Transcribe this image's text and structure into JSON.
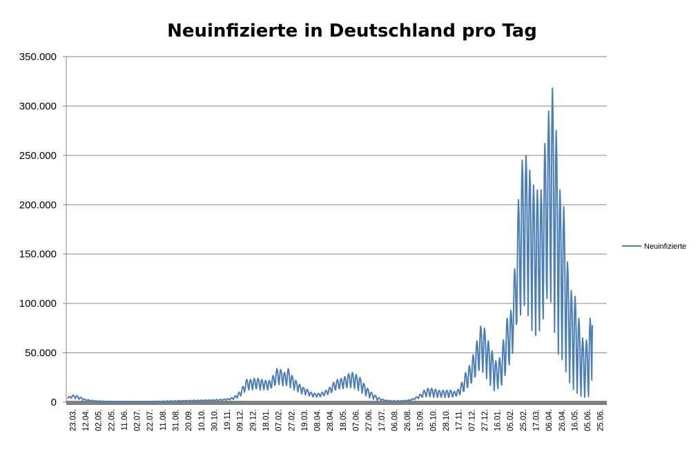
{
  "chart_data": {
    "type": "line",
    "title": "Neuinfizierte in Deutschland pro Tag",
    "xlabel": "",
    "ylabel": "",
    "ylim": [
      0,
      350000
    ],
    "y_ticks": [
      0,
      50000,
      100000,
      150000,
      200000,
      250000,
      300000,
      350000
    ],
    "y_tick_labels": [
      "0",
      "50.000",
      "100.000",
      "150.000",
      "200.000",
      "250.000",
      "300.000",
      "350.000"
    ],
    "x_tick_labels": [
      "23.03.",
      "12.04.",
      "02.05.",
      "22.05.",
      "11.06.",
      "02.07.",
      "22.07.",
      "11.08.",
      "31.08.",
      "20.09.",
      "10.10.",
      "30.10.",
      "19.11.",
      "09.12.",
      "29.12.",
      "18.01.",
      "07.02.",
      "27.02.",
      "19.03.",
      "08.04.",
      "28.04.",
      "18.05.",
      "07.06.",
      "27.06.",
      "17.07.",
      "06.08.",
      "26.08.",
      "15.09.",
      "05.10.",
      "28.10.",
      "17.11.",
      "07.12.",
      "27.12.",
      "16.01.",
      "05.02.",
      "25.02.",
      "17.03.",
      "06.04.",
      "26.04.",
      "16.05.",
      "05.06.",
      "25.06."
    ],
    "grid": true,
    "legend_position": "right",
    "colors": {
      "line": "#4a7ebb",
      "grid": "#868686",
      "baseline": "#808080"
    },
    "series": [
      {
        "name": "Neuinfizierte",
        "day_step": 20,
        "weekly_peaks": [
          5800,
          7200,
          6500,
          5000,
          3200,
          2400,
          1800,
          1400,
          1200,
          1000,
          900,
          800,
          700,
          650,
          650,
          700,
          700,
          600,
          500,
          600,
          600,
          700,
          800,
          900,
          1000,
          1100,
          1200,
          1300,
          1400,
          1500,
          1600,
          1700,
          1800,
          1900,
          2000,
          2100,
          2200,
          2300,
          2400,
          2600,
          2800,
          3200,
          3600,
          4500,
          6500,
          10000,
          16000,
          23000,
          23000,
          24000,
          24000,
          23000,
          22000,
          22000,
          27000,
          34000,
          33000,
          30000,
          34000,
          27000,
          22000,
          18000,
          15000,
          13000,
          10000,
          9000,
          9000,
          10000,
          12000,
          15000,
          20000,
          23000,
          24000,
          26000,
          29000,
          30000,
          28000,
          25000,
          19000,
          14000,
          10000,
          7000,
          4500,
          3000,
          2000,
          1700,
          1500,
          1400,
          1500,
          1800,
          2300,
          3500,
          5500,
          8000,
          12000,
          14000,
          14000,
          13000,
          12000,
          12000,
          12000,
          12000,
          11000,
          13000,
          20000,
          30000,
          37000,
          48000,
          62000,
          77000,
          75000,
          62000,
          52000,
          42000,
          45000,
          63000,
          85000,
          93000,
          135000,
          205000,
          245000,
          250000,
          235000,
          220000,
          215000,
          215000,
          262000,
          295000,
          318000,
          275000,
          215000,
          198000,
          142000,
          113000,
          107000,
          85000,
          65000,
          63000,
          85000
        ],
        "weekly_lows": [
          3500,
          4000,
          3500,
          2800,
          1800,
          1400,
          1000,
          800,
          700,
          600,
          500,
          450,
          400,
          400,
          400,
          400,
          400,
          350,
          300,
          350,
          350,
          400,
          450,
          500,
          550,
          600,
          650,
          700,
          750,
          800,
          850,
          900,
          1000,
          1000,
          1100,
          1200,
          1200,
          1300,
          1300,
          1400,
          1500,
          1700,
          1900,
          2300,
          3300,
          5000,
          8000,
          12000,
          12000,
          12000,
          13000,
          12000,
          12000,
          12000,
          14000,
          17000,
          17000,
          16000,
          16000,
          14000,
          12000,
          10000,
          8000,
          7000,
          6000,
          5000,
          5000,
          5500,
          6500,
          8000,
          10000,
          12000,
          13000,
          13000,
          14000,
          14000,
          13000,
          11000,
          8500,
          6000,
          4000,
          2800,
          1800,
          1200,
          900,
          800,
          700,
          700,
          800,
          1000,
          1300,
          2000,
          3000,
          4000,
          5000,
          5000,
          5000,
          4500,
          4500,
          4500,
          4500,
          4500,
          5000,
          6000,
          8000,
          10000,
          14000,
          18000,
          25000,
          30000,
          28000,
          22000,
          15000,
          10000,
          12000,
          15000,
          30000,
          35000,
          60000,
          75000,
          80000,
          90000,
          80000,
          65000,
          60000,
          65000,
          75000,
          95000,
          90000,
          60000,
          40000,
          35000,
          25000,
          15000,
          8000,
          5000,
          3000,
          2000,
          1500,
          2000
        ],
        "last_value": 78000
      }
    ]
  }
}
